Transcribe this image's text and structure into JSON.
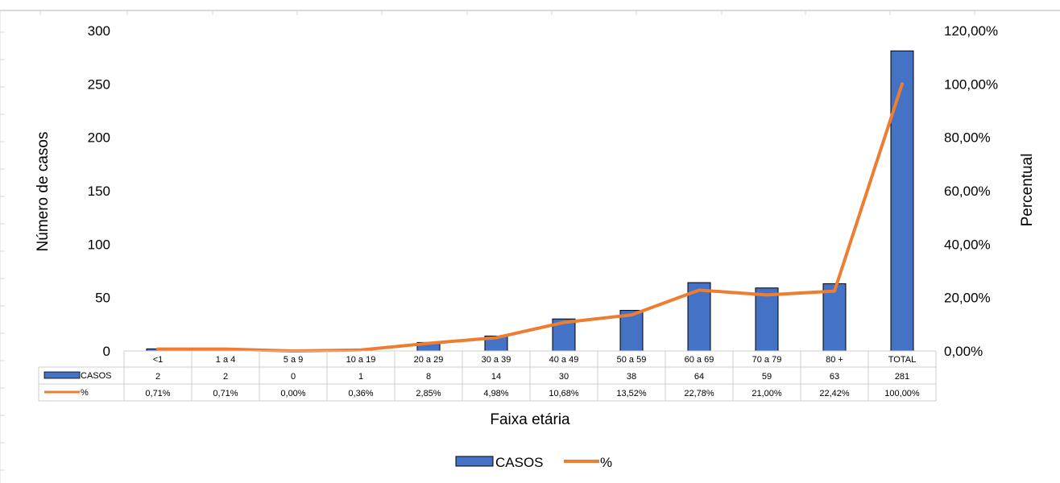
{
  "chart_data": {
    "type": "bar",
    "categories": [
      "<1",
      "1 a 4",
      "5 a 9",
      "10 a 19",
      "20 a 29",
      "30 a 39",
      "40 a 49",
      "50 a 59",
      "60 a 69",
      "70 a 79",
      "80 +",
      "TOTAL"
    ],
    "series": [
      {
        "name": "CASOS",
        "type": "bar",
        "axis": "left",
        "color": "#4472C4",
        "values": [
          2,
          2,
          0,
          1,
          8,
          14,
          30,
          38,
          64,
          59,
          63,
          281
        ],
        "table_values": [
          "2",
          "2",
          "0",
          "1",
          "8",
          "14",
          "30",
          "38",
          "64",
          "59",
          "63",
          "281"
        ]
      },
      {
        "name": "%",
        "type": "line",
        "axis": "right",
        "color": "#ED7D31",
        "values": [
          0.71,
          0.71,
          0.0,
          0.36,
          2.85,
          4.98,
          10.68,
          13.52,
          22.78,
          21.0,
          22.42,
          100.0
        ],
        "table_values": [
          "0,71%",
          "0,71%",
          "0,00%",
          "0,36%",
          "2,85%",
          "4,98%",
          "10,68%",
          "13,52%",
          "22,78%",
          "21,00%",
          "22,42%",
          "100,00%"
        ]
      }
    ],
    "xlabel": "Faixa etária",
    "ylabel": "Número de casos",
    "y2label": "Percentual",
    "ylim": [
      0,
      300
    ],
    "y2lim": [
      0,
      120
    ],
    "yticks": [
      "0",
      "50",
      "100",
      "150",
      "200",
      "250",
      "300"
    ],
    "y2ticks": [
      "0,00%",
      "20,00%",
      "40,00%",
      "60,00%",
      "80,00%",
      "100,00%",
      "120,00%"
    ],
    "grid": false,
    "legend": "bottom",
    "data_table": true
  }
}
